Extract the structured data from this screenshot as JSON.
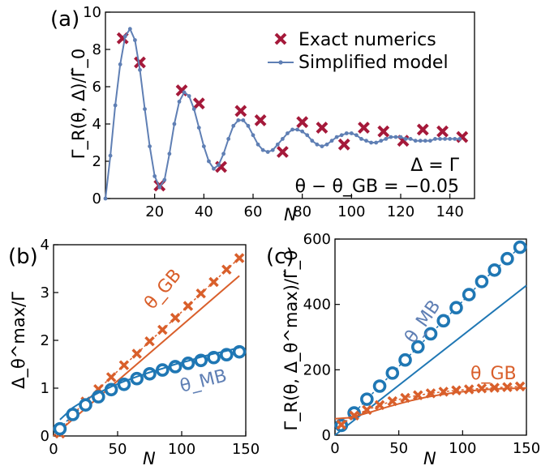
{
  "panels": {
    "a": {
      "tag": "(a)",
      "xlabel": "N",
      "ylabel": "Γ_R(θ, Δ)/Γ̃_0",
      "legend_exact": "Exact numerics",
      "legend_model": "Simplified model",
      "note1": "Δ = Γ",
      "note2": "θ − θ_GB = −0.05"
    },
    "b": {
      "tag": "(b)",
      "xlabel": "N",
      "ylabel": "Δ_θ^max/Γ",
      "label_gb": "θ_GB",
      "label_mb": "θ_MB"
    },
    "c": {
      "tag": "(c)",
      "xlabel": "N",
      "ylabel": "Γ_R(θ, Δ_θ^max)/Γ̃_0",
      "label_gb": "θ_GB",
      "label_mb": "θ_MB"
    }
  },
  "colors": {
    "red_cross": "#a5193a",
    "model_line": "#5f7fb4",
    "orange": "#d95f2b",
    "blue": "#1f77b4"
  },
  "chart_data": [
    {
      "type": "line",
      "title": "(a)",
      "xlabel": "N",
      "ylabel": "Γ_R(θ, Δ)/Γ̃_0",
      "xlim": [
        0,
        150
      ],
      "ylim": [
        0,
        10
      ],
      "xticks": [
        20,
        40,
        60,
        80,
        100,
        120,
        140
      ],
      "yticks": [
        0,
        2,
        4,
        6,
        8,
        10
      ],
      "grid": false,
      "legend": "top-right",
      "series": [
        {
          "name": "Exact numerics",
          "style": "cross",
          "x": [
            7,
            14,
            22,
            31,
            38,
            47,
            55,
            63,
            72,
            80,
            88,
            97,
            105,
            113,
            121,
            129,
            137,
            145
          ],
          "y": [
            8.6,
            7.3,
            0.7,
            5.8,
            5.1,
            1.7,
            4.7,
            4.2,
            2.5,
            4.1,
            3.8,
            2.9,
            3.8,
            3.6,
            3.1,
            3.7,
            3.6,
            3.3
          ]
        },
        {
          "name": "Simplified model",
          "style": "line-dots",
          "x": [
            0,
            2,
            4,
            6,
            8,
            10,
            12,
            14,
            16,
            18,
            20,
            22,
            24,
            26,
            28,
            30,
            32,
            34,
            36,
            38,
            40,
            42,
            44,
            46,
            48,
            50,
            52,
            54,
            56,
            58,
            60,
            62,
            64,
            66,
            68,
            70,
            72,
            74,
            76,
            78,
            80,
            82,
            84,
            86,
            88,
            90,
            92,
            94,
            96,
            98,
            100,
            102,
            104,
            106,
            108,
            110,
            112,
            114,
            116,
            118,
            120,
            122,
            124,
            126,
            128,
            130,
            132,
            134,
            136,
            138,
            140,
            142,
            144
          ],
          "y": [
            0.0,
            2.3,
            5.0,
            7.2,
            8.7,
            9.1,
            8.5,
            6.9,
            4.8,
            2.8,
            1.2,
            0.6,
            1.0,
            2.4,
            4.0,
            5.2,
            5.7,
            5.5,
            4.8,
            3.8,
            2.8,
            2.0,
            1.6,
            1.8,
            2.4,
            3.2,
            3.9,
            4.2,
            4.2,
            3.9,
            3.4,
            2.9,
            2.6,
            2.5,
            2.6,
            2.9,
            3.2,
            3.5,
            3.7,
            3.7,
            3.6,
            3.4,
            3.1,
            2.9,
            2.8,
            2.9,
            3.1,
            3.3,
            3.4,
            3.5,
            3.5,
            3.4,
            3.2,
            3.1,
            3.0,
            3.0,
            3.1,
            3.2,
            3.3,
            3.3,
            3.3,
            3.2,
            3.2,
            3.1,
            3.1,
            3.1,
            3.1,
            3.2,
            3.2,
            3.2,
            3.2,
            3.2,
            3.2
          ]
        }
      ],
      "annotations": [
        "Δ = Γ",
        "θ − θ_GB = −0.05"
      ]
    },
    {
      "type": "line",
      "title": "(b)",
      "xlabel": "N",
      "ylabel": "Δ_θ^max/Γ",
      "xlim": [
        0,
        150
      ],
      "ylim": [
        0,
        4
      ],
      "xticks": [
        0,
        50,
        100,
        150
      ],
      "yticks": [
        0,
        1,
        2,
        3,
        4
      ],
      "grid": false,
      "series": [
        {
          "name": "θ_GB",
          "style": "cross",
          "x": [
            5,
            15,
            25,
            35,
            45,
            55,
            65,
            75,
            85,
            95,
            105,
            115,
            125,
            135,
            145
          ],
          "y": [
            0.05,
            0.45,
            0.72,
            0.98,
            1.23,
            1.48,
            1.72,
            1.98,
            2.22,
            2.47,
            2.72,
            2.98,
            3.22,
            3.48,
            3.72
          ]
        },
        {
          "name": "θ_GB fit",
          "style": "line",
          "x": [
            0,
            145
          ],
          "y": [
            0.0,
            3.35
          ]
        },
        {
          "name": "θ_MB",
          "style": "circle",
          "x": [
            5,
            15,
            25,
            35,
            45,
            55,
            65,
            75,
            85,
            95,
            105,
            115,
            125,
            135,
            145
          ],
          "y": [
            0.15,
            0.45,
            0.65,
            0.82,
            0.97,
            1.08,
            1.2,
            1.3,
            1.38,
            1.45,
            1.52,
            1.58,
            1.64,
            1.7,
            1.76
          ]
        },
        {
          "name": "θ_MB fit",
          "style": "line",
          "x": [
            5,
            15,
            25,
            35,
            45,
            55,
            65,
            75,
            85,
            95,
            105,
            115,
            125,
            135,
            145
          ],
          "y": [
            0.34,
            0.59,
            0.76,
            0.9,
            1.03,
            1.14,
            1.24,
            1.33,
            1.41,
            1.5,
            1.57,
            1.65,
            1.72,
            1.78,
            1.85
          ]
        }
      ],
      "annotations": [
        "θ_GB",
        "θ_MB"
      ]
    },
    {
      "type": "line",
      "title": "(c)",
      "xlabel": "N",
      "ylabel": "Γ_R(θ, Δ_θ^max)/Γ̃_0",
      "xlim": [
        0,
        150
      ],
      "ylim": [
        0,
        600
      ],
      "xticks": [
        0,
        50,
        100,
        150
      ],
      "yticks": [
        0,
        200,
        400,
        600
      ],
      "grid": false,
      "series": [
        {
          "name": "θ_MB",
          "style": "circle",
          "x": [
            5,
            15,
            25,
            35,
            45,
            55,
            65,
            75,
            85,
            95,
            105,
            115,
            125,
            135,
            145
          ],
          "y": [
            30,
            68,
            110,
            150,
            190,
            230,
            270,
            310,
            350,
            390,
            430,
            470,
            505,
            540,
            575
          ]
        },
        {
          "name": "θ_MB fit",
          "style": "line",
          "x": [
            0,
            150
          ],
          "y": [
            0,
            458
          ]
        },
        {
          "name": "θ_GB",
          "style": "cross",
          "x": [
            5,
            15,
            25,
            35,
            45,
            55,
            65,
            75,
            85,
            95,
            105,
            115,
            125,
            135,
            145
          ],
          "y": [
            32,
            60,
            77,
            92,
            104,
            114,
            122,
            128,
            133,
            137,
            140,
            143,
            145,
            147,
            149
          ]
        },
        {
          "name": "θ_GB fit",
          "style": "line",
          "x": [
            0,
            10,
            20,
            30,
            40,
            50,
            60,
            70,
            80,
            90,
            100,
            110,
            120,
            130,
            140,
            150
          ],
          "y": [
            50,
            53,
            62,
            73,
            85,
            96,
            106,
            115,
            122,
            128,
            133,
            137,
            140,
            142,
            143,
            144
          ]
        }
      ],
      "annotations": [
        "θ_MB",
        "θ_GB"
      ]
    }
  ]
}
